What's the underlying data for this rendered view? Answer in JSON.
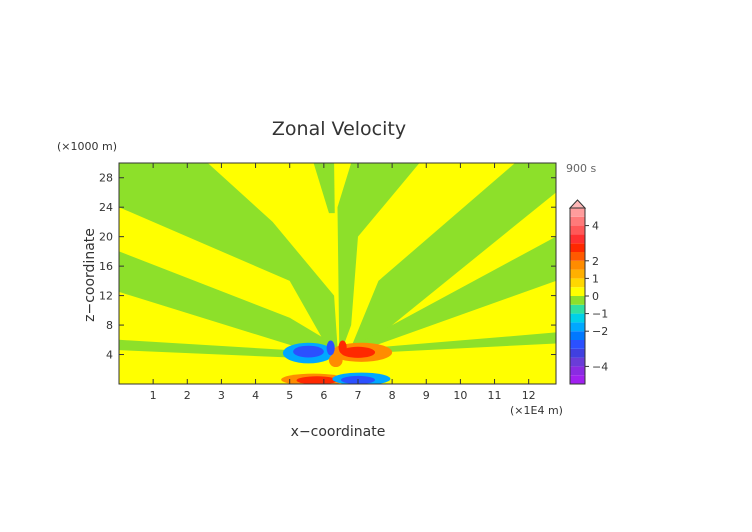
{
  "chart_data": {
    "type": "heatmap",
    "title": "Zonal Velocity",
    "xlabel": "x−coordinate",
    "ylabel": "z−coordinate",
    "x_unit": "(×1E4 m)",
    "y_unit": "(×1000 m)",
    "time_label": "900 s",
    "xlim": [
      0,
      12.8
    ],
    "ylim": [
      0,
      30
    ],
    "x_ticks": [
      1,
      2,
      3,
      4,
      5,
      6,
      7,
      8,
      9,
      10,
      11,
      12
    ],
    "x_tick_labels": [
      "1",
      "2",
      "3",
      "4",
      "5",
      "6",
      "7",
      "8",
      "9",
      "10",
      "11",
      "12"
    ],
    "y_ticks": [
      4,
      8,
      12,
      16,
      20,
      24,
      28
    ],
    "y_tick_labels": [
      "4",
      "8",
      "12",
      "16",
      "20",
      "24",
      "28"
    ],
    "colorbar": {
      "levels": [
        -5,
        -4.5,
        -4,
        -3.5,
        -3,
        -2.5,
        -2,
        -1.5,
        -1,
        -0.5,
        0,
        0.5,
        1,
        1.5,
        2,
        2.5,
        3,
        3.5,
        4,
        4.5,
        5
      ],
      "colors": [
        "#a020f0",
        "#8a2be2",
        "#6a3cd8",
        "#4040e0",
        "#2b50ff",
        "#0078ff",
        "#00a8ff",
        "#00d0e8",
        "#30e0a0",
        "#8de02a",
        "#ffff00",
        "#ffd700",
        "#ffb000",
        "#ff8c00",
        "#ff5a00",
        "#ff2800",
        "#ff3030",
        "#ff5858",
        "#ff7a7a",
        "#ff9c9c"
      ],
      "tick_values": [
        -4,
        -2,
        -1,
        0,
        1,
        2,
        4
      ],
      "tick_labels": [
        "−4",
        "−2",
        "−1",
        "0",
        "1",
        "2",
        "4"
      ],
      "over_color": "#ffb8b8"
    },
    "field_colors": {
      "background": "#ffff00",
      "band": "#8de02a",
      "positive_core": "#ff2800",
      "positive_mid": "#ff8c00",
      "negative_core": "#2b50ff",
      "negative_mid": "#00a8ff"
    }
  }
}
